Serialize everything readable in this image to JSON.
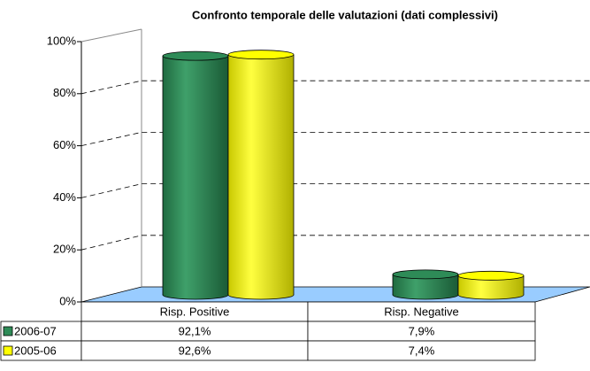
{
  "chart_data": {
    "type": "bar3d",
    "title": "Confronto temporale delle valutazioni (dati complessivi)",
    "categories": [
      "Risp. Positive",
      "Risp. Negative"
    ],
    "series": [
      {
        "name": "2006-07",
        "color": "#2e8b57",
        "values": [
          92.1,
          7.9
        ],
        "value_labels": [
          "92,1%",
          "7,9%"
        ]
      },
      {
        "name": "2005-06",
        "color": "#ffff00",
        "values": [
          92.6,
          7.4
        ],
        "value_labels": [
          "92,6%",
          "7,4%"
        ]
      }
    ],
    "ylim": [
      0,
      100
    ],
    "yticks": [
      {
        "value": 0,
        "label": "0%"
      },
      {
        "value": 20,
        "label": "20%"
      },
      {
        "value": 40,
        "label": "40%"
      },
      {
        "value": 60,
        "label": "60%"
      },
      {
        "value": 80,
        "label": "80%"
      },
      {
        "value": 100,
        "label": "100%"
      }
    ],
    "grid": true
  }
}
